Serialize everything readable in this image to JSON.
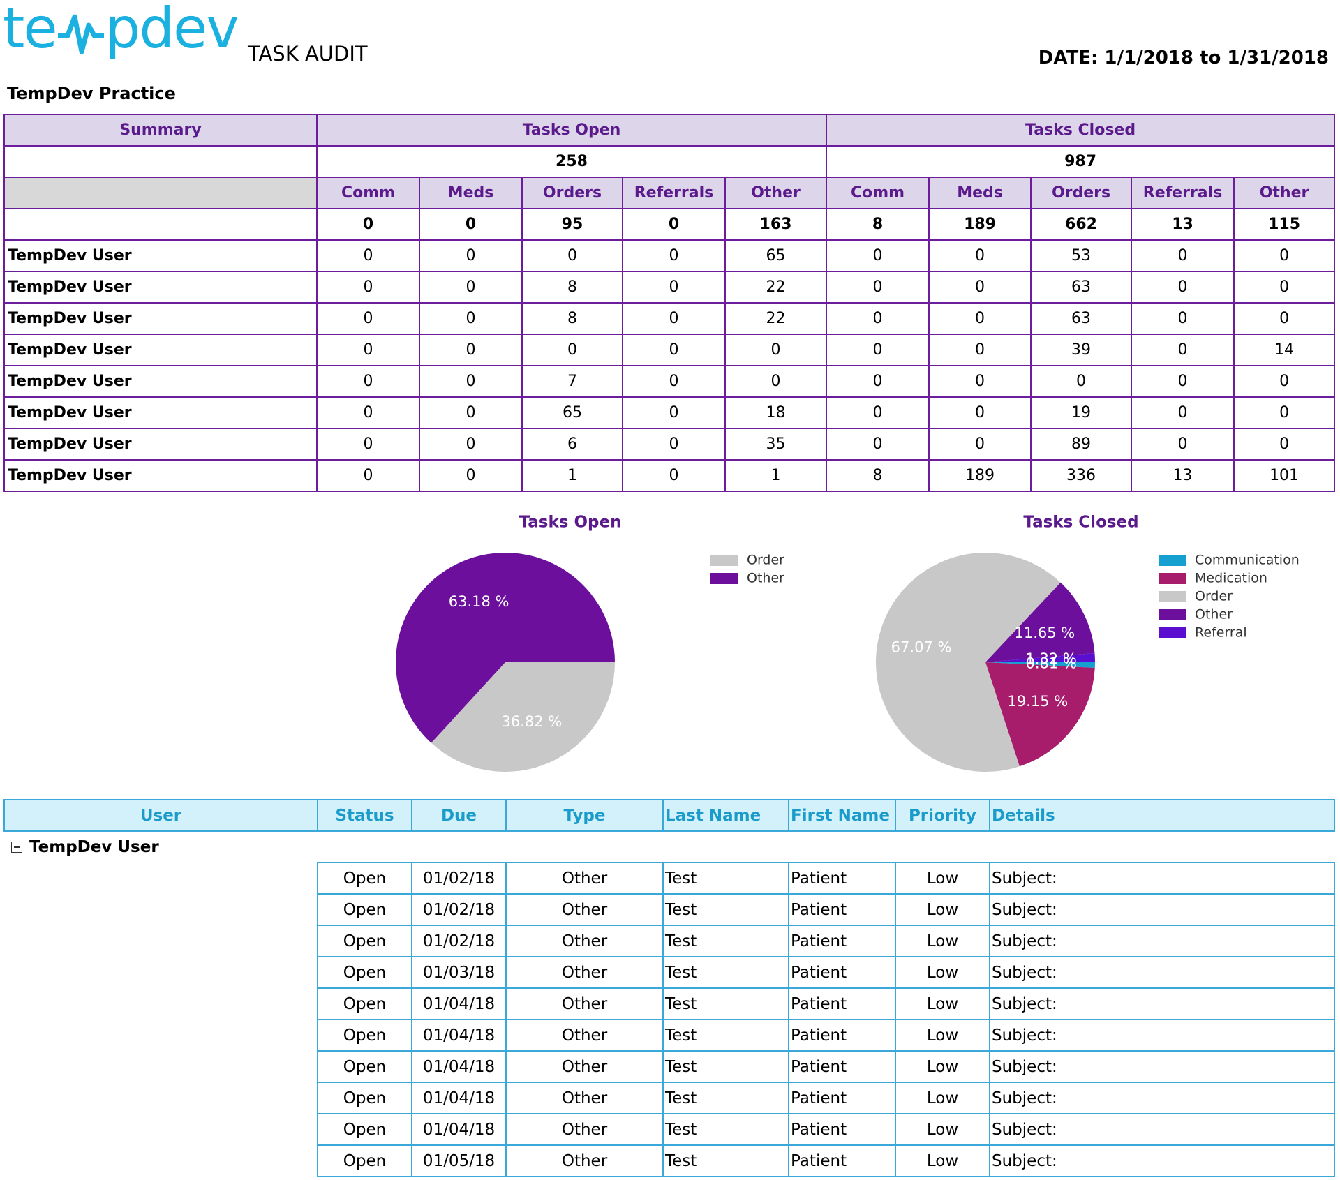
{
  "header": {
    "logo": [
      "te",
      "pdev"
    ],
    "title": "TASK AUDIT",
    "date": "DATE: 1/1/2018 to 1/31/2018",
    "practice": "TempDev Practice"
  },
  "summary": {
    "headers": [
      "Summary",
      "Tasks Open",
      "Tasks Closed"
    ],
    "group_totals": [
      258,
      987
    ],
    "open_columns": [
      "Comm",
      "Meds",
      "Orders",
      "Referrals",
      "Other"
    ],
    "closed_columns": [
      "Comm",
      "Meds",
      "Orders",
      "Referrals",
      "Other"
    ],
    "totals": [
      0,
      0,
      95,
      0,
      163,
      8,
      189,
      662,
      13,
      115
    ],
    "rows": [
      {
        "user": "TempDev User",
        "values": [
          0,
          0,
          0,
          0,
          65,
          0,
          0,
          53,
          0,
          0
        ]
      },
      {
        "user": "TempDev User",
        "values": [
          0,
          0,
          8,
          0,
          22,
          0,
          0,
          63,
          0,
          0
        ]
      },
      {
        "user": "TempDev User",
        "values": [
          0,
          0,
          8,
          0,
          22,
          0,
          0,
          63,
          0,
          0
        ]
      },
      {
        "user": "TempDev User",
        "values": [
          0,
          0,
          0,
          0,
          0,
          0,
          0,
          39,
          0,
          14
        ]
      },
      {
        "user": "TempDev User",
        "values": [
          0,
          0,
          7,
          0,
          0,
          0,
          0,
          0,
          0,
          0
        ]
      },
      {
        "user": "TempDev User",
        "values": [
          0,
          0,
          65,
          0,
          18,
          0,
          0,
          19,
          0,
          0
        ]
      },
      {
        "user": "TempDev User",
        "values": [
          0,
          0,
          6,
          0,
          35,
          0,
          0,
          89,
          0,
          0
        ]
      },
      {
        "user": "TempDev User",
        "values": [
          0,
          0,
          1,
          0,
          1,
          8,
          189,
          336,
          13,
          101
        ]
      }
    ]
  },
  "chart_data": [
    {
      "type": "pie",
      "title": "Tasks Open",
      "categories": [
        "Order",
        "Other"
      ],
      "values": [
        36.82,
        63.18
      ],
      "value_labels": [
        "36.82 %",
        "63.18 %"
      ],
      "colors": [
        "#c8c8c8",
        "#6c0f9c"
      ]
    },
    {
      "type": "pie",
      "title": "Tasks Closed",
      "categories": [
        "Communication",
        "Medication",
        "Order",
        "Other",
        "Referral"
      ],
      "values": [
        0.81,
        19.15,
        67.07,
        11.65,
        1.32
      ],
      "value_labels": [
        "0.81 %",
        "19.15 %",
        "67.07 %",
        "11.65 %",
        "1.32 %"
      ],
      "colors": [
        "#16a0d0",
        "#a81c6c",
        "#c8c8c8",
        "#6c0f9c",
        "#5a0fd0"
      ]
    }
  ],
  "tasks": {
    "headers": [
      "User",
      "Status",
      "Due",
      "Type",
      "Last Name",
      "First Name",
      "Priority",
      "Details"
    ],
    "group": "TempDev User",
    "rows": [
      [
        "Open",
        "01/02/18",
        "Other",
        "Test",
        "Patient",
        "Low",
        "Subject:"
      ],
      [
        "Open",
        "01/02/18",
        "Other",
        "Test",
        "Patient",
        "Low",
        "Subject:"
      ],
      [
        "Open",
        "01/02/18",
        "Other",
        "Test",
        "Patient",
        "Low",
        "Subject:"
      ],
      [
        "Open",
        "01/03/18",
        "Other",
        "Test",
        "Patient",
        "Low",
        "Subject:"
      ],
      [
        "Open",
        "01/04/18",
        "Other",
        "Test",
        "Patient",
        "Low",
        "Subject:"
      ],
      [
        "Open",
        "01/04/18",
        "Other",
        "Test",
        "Patient",
        "Low",
        "Subject:"
      ],
      [
        "Open",
        "01/04/18",
        "Other",
        "Test",
        "Patient",
        "Low",
        "Subject:"
      ],
      [
        "Open",
        "01/04/18",
        "Other",
        "Test",
        "Patient",
        "Low",
        "Subject:"
      ],
      [
        "Open",
        "01/04/18",
        "Other",
        "Test",
        "Patient",
        "Low",
        "Subject:"
      ],
      [
        "Open",
        "01/05/18",
        "Other",
        "Test",
        "Patient",
        "Low",
        "Subject:"
      ]
    ]
  }
}
